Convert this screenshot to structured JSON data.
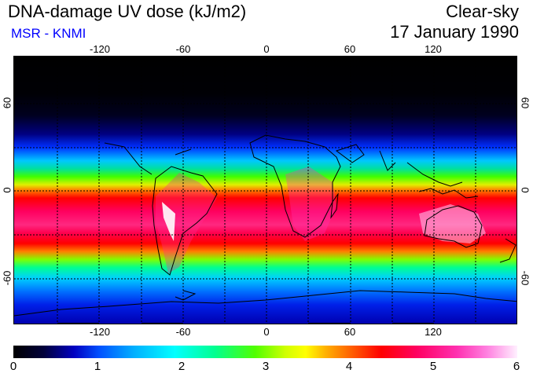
{
  "header": {
    "title": "DNA-damage UV dose (kJ/m2)",
    "subtitle": "MSR - KNMI",
    "sky_condition": "Clear-sky",
    "date": "17 January 1990"
  },
  "map": {
    "longitude_ticks": [
      "-120",
      "-60",
      "0",
      "60",
      "120"
    ],
    "latitude_ticks": [
      "60",
      "0",
      "-60"
    ],
    "colors": {
      "frame": "#000000",
      "gridline": "#000000",
      "coastline": "#000000",
      "subtitle": "#0000ff"
    }
  },
  "colorbar": {
    "min": 0,
    "max": 6,
    "tick_labels": [
      "0",
      "1",
      "2",
      "3",
      "4",
      "5",
      "6"
    ]
  }
}
